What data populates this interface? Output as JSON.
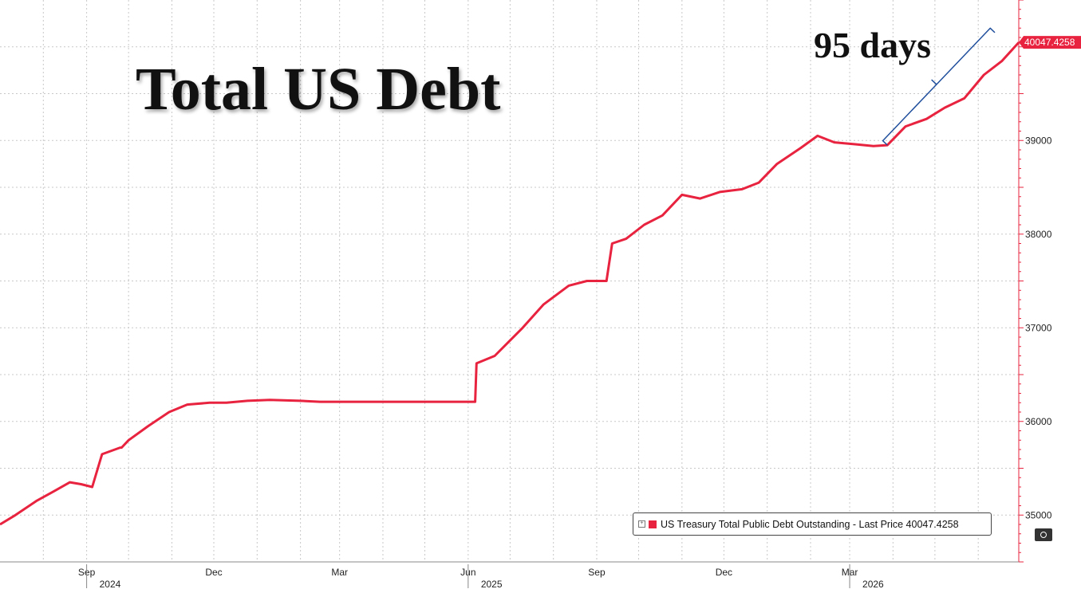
{
  "title": "Total US Debt",
  "annotation": "95 days",
  "colors": {
    "series": "#e8233f",
    "grid": "#c8c8c8",
    "text": "#111111"
  },
  "legend_text": "US Treasury Total Public Debt Outstanding - Last Price 40047.4258",
  "chart_data": {
    "type": "line",
    "title": "Total US Debt",
    "x_start": "2024-07-01",
    "x_end": "2026-06-30",
    "ylim": [
      34500,
      40500
    ],
    "yticks": [
      35000,
      36000,
      37000,
      38000,
      39000
    ],
    "month_ticks": [
      "Sep",
      "Dec",
      "Mar",
      "Jun",
      "Sep",
      "Dec",
      "Mar"
    ],
    "month_tick_dates": [
      "2024-09-01",
      "2024-12-01",
      "2025-03-01",
      "2025-06-01",
      "2025-09-01",
      "2025-12-01",
      "2026-03-01"
    ],
    "year_labels": [
      "2024",
      "2025",
      "2026"
    ],
    "year_label_dates": [
      "2024-09-01",
      "2025-06-01",
      "2026-03-01"
    ],
    "grid": true,
    "last_value_label": "40047.4258",
    "annotation_start": "2026-03-28",
    "annotation_end": "2026-06-30",
    "series": [
      {
        "name": "US Treasury Total Public Debt Outstanding",
        "x": [
          "2024-07-01",
          "2024-07-12",
          "2024-07-27",
          "2024-08-08",
          "2024-08-20",
          "2024-08-28",
          "2024-09-05",
          "2024-09-12",
          "2024-09-25",
          "2024-09-26",
          "2024-10-01",
          "2024-10-15",
          "2024-10-30",
          "2024-11-12",
          "2024-11-28",
          "2024-12-10",
          "2024-12-25",
          "2025-01-10",
          "2025-02-01",
          "2025-02-15",
          "2025-03-01",
          "2025-04-15",
          "2025-06-06",
          "2025-06-07",
          "2025-06-20",
          "2025-07-10",
          "2025-07-25",
          "2025-08-12",
          "2025-08-25",
          "2025-09-08",
          "2025-09-12",
          "2025-09-22",
          "2025-10-05",
          "2025-10-18",
          "2025-11-01",
          "2025-11-14",
          "2025-11-28",
          "2025-12-14",
          "2025-12-26",
          "2026-01-08",
          "2026-01-25",
          "2026-02-06",
          "2026-02-18",
          "2026-03-05",
          "2026-03-18",
          "2026-03-28",
          "2026-04-10",
          "2026-04-25",
          "2026-05-08",
          "2026-05-22",
          "2026-06-05",
          "2026-06-18",
          "2026-06-30"
        ],
        "values": [
          34900,
          35000,
          35150,
          35250,
          35350,
          35330,
          35300,
          35650,
          35720,
          35720,
          35800,
          35950,
          36100,
          36180,
          36200,
          36200,
          36220,
          36230,
          36220,
          36210,
          36210,
          36210,
          36210,
          36620,
          36700,
          37000,
          37250,
          37450,
          37500,
          37500,
          37900,
          37950,
          38100,
          38200,
          38420,
          38380,
          38450,
          38480,
          38550,
          38750,
          38920,
          39050,
          38980,
          38960,
          38940,
          38950,
          39150,
          39230,
          39350,
          39450,
          39700,
          39850,
          40047.4258
        ]
      }
    ]
  },
  "corner_button_icon": "camera-icon"
}
